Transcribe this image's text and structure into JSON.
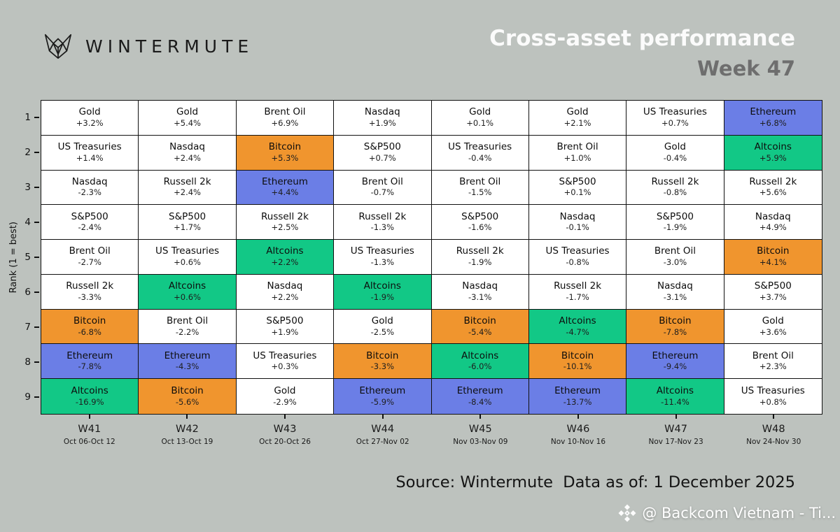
{
  "header": {
    "brand": "WINTERMUTE",
    "title": "Cross-asset performance",
    "subtitle": "Week 47"
  },
  "colors": {
    "background": "#bdc2be",
    "grid_line": "#111111",
    "bitcoin": "#f0952e",
    "ethereum": "#6b7ee6",
    "altcoins": "#12c886",
    "default_cell": "#ffffff",
    "title_text": "#fbfbfb",
    "subtitle_text": "#6e6e6e"
  },
  "chart_data": {
    "type": "heatmap",
    "title": "Cross-asset performance",
    "subtitle": "Week 47",
    "ylabel": "Rank (1 = best)",
    "legend": "none",
    "grid": "on",
    "columns": [
      {
        "week": "W41",
        "dates": "Oct 06-Oct 12"
      },
      {
        "week": "W42",
        "dates": "Oct 13-Oct 19"
      },
      {
        "week": "W43",
        "dates": "Oct 20-Oct 26"
      },
      {
        "week": "W44",
        "dates": "Oct 27-Nov 02"
      },
      {
        "week": "W45",
        "dates": "Nov 03-Nov 09"
      },
      {
        "week": "W46",
        "dates": "Nov 10-Nov 16"
      },
      {
        "week": "W47",
        "dates": "Nov 17-Nov 23"
      },
      {
        "week": "W48",
        "dates": "Nov 24-Nov 30"
      }
    ],
    "rows": [
      {
        "rank": "1",
        "cells": [
          {
            "asset": "Gold",
            "change": "+3.2%"
          },
          {
            "asset": "Gold",
            "change": "+5.4%"
          },
          {
            "asset": "Brent Oil",
            "change": "+6.9%"
          },
          {
            "asset": "Nasdaq",
            "change": "+1.9%"
          },
          {
            "asset": "Gold",
            "change": "+0.1%"
          },
          {
            "asset": "Gold",
            "change": "+2.1%"
          },
          {
            "asset": "US Treasuries",
            "change": "+0.7%"
          },
          {
            "asset": "Ethereum",
            "change": "+6.8%"
          }
        ]
      },
      {
        "rank": "2",
        "cells": [
          {
            "asset": "US Treasuries",
            "change": "+1.4%"
          },
          {
            "asset": "Nasdaq",
            "change": "+2.4%"
          },
          {
            "asset": "Bitcoin",
            "change": "+5.3%"
          },
          {
            "asset": "S&P500",
            "change": "+0.7%"
          },
          {
            "asset": "US Treasuries",
            "change": "-0.4%"
          },
          {
            "asset": "Brent Oil",
            "change": "+1.0%"
          },
          {
            "asset": "Gold",
            "change": "-0.4%"
          },
          {
            "asset": "Altcoins",
            "change": "+5.9%"
          }
        ]
      },
      {
        "rank": "3",
        "cells": [
          {
            "asset": "Nasdaq",
            "change": "-2.3%"
          },
          {
            "asset": "Russell 2k",
            "change": "+2.4%"
          },
          {
            "asset": "Ethereum",
            "change": "+4.4%"
          },
          {
            "asset": "Brent Oil",
            "change": "-0.7%"
          },
          {
            "asset": "Brent Oil",
            "change": "-1.5%"
          },
          {
            "asset": "S&P500",
            "change": "+0.1%"
          },
          {
            "asset": "Russell 2k",
            "change": "-0.8%"
          },
          {
            "asset": "Russell 2k",
            "change": "+5.6%"
          }
        ]
      },
      {
        "rank": "4",
        "cells": [
          {
            "asset": "S&P500",
            "change": "-2.4%"
          },
          {
            "asset": "S&P500",
            "change": "+1.7%"
          },
          {
            "asset": "Russell 2k",
            "change": "+2.5%"
          },
          {
            "asset": "Russell 2k",
            "change": "-1.3%"
          },
          {
            "asset": "S&P500",
            "change": "-1.6%"
          },
          {
            "asset": "Nasdaq",
            "change": "-0.1%"
          },
          {
            "asset": "S&P500",
            "change": "-1.9%"
          },
          {
            "asset": "Nasdaq",
            "change": "+4.9%"
          }
        ]
      },
      {
        "rank": "5",
        "cells": [
          {
            "asset": "Brent Oil",
            "change": "-2.7%"
          },
          {
            "asset": "US Treasuries",
            "change": "+0.6%"
          },
          {
            "asset": "Altcoins",
            "change": "+2.2%"
          },
          {
            "asset": "US Treasuries",
            "change": "-1.3%"
          },
          {
            "asset": "Russell 2k",
            "change": "-1.9%"
          },
          {
            "asset": "US Treasuries",
            "change": "-0.8%"
          },
          {
            "asset": "Brent Oil",
            "change": "-3.0%"
          },
          {
            "asset": "Bitcoin",
            "change": "+4.1%"
          }
        ]
      },
      {
        "rank": "6",
        "cells": [
          {
            "asset": "Russell 2k",
            "change": "-3.3%"
          },
          {
            "asset": "Altcoins",
            "change": "+0.6%"
          },
          {
            "asset": "Nasdaq",
            "change": "+2.2%"
          },
          {
            "asset": "Altcoins",
            "change": "-1.9%"
          },
          {
            "asset": "Nasdaq",
            "change": "-3.1%"
          },
          {
            "asset": "Russell 2k",
            "change": "-1.7%"
          },
          {
            "asset": "Nasdaq",
            "change": "-3.1%"
          },
          {
            "asset": "S&P500",
            "change": "+3.7%"
          }
        ]
      },
      {
        "rank": "7",
        "cells": [
          {
            "asset": "Bitcoin",
            "change": "-6.8%"
          },
          {
            "asset": "Brent Oil",
            "change": "-2.2%"
          },
          {
            "asset": "S&P500",
            "change": "+1.9%"
          },
          {
            "asset": "Gold",
            "change": "-2.5%"
          },
          {
            "asset": "Bitcoin",
            "change": "-5.4%"
          },
          {
            "asset": "Altcoins",
            "change": "-4.7%"
          },
          {
            "asset": "Bitcoin",
            "change": "-7.8%"
          },
          {
            "asset": "Gold",
            "change": "+3.6%"
          }
        ]
      },
      {
        "rank": "8",
        "cells": [
          {
            "asset": "Ethereum",
            "change": "-7.8%"
          },
          {
            "asset": "Ethereum",
            "change": "-4.3%"
          },
          {
            "asset": "US Treasuries",
            "change": "+0.3%"
          },
          {
            "asset": "Bitcoin",
            "change": "-3.3%"
          },
          {
            "asset": "Altcoins",
            "change": "-6.0%"
          },
          {
            "asset": "Bitcoin",
            "change": "-10.1%"
          },
          {
            "asset": "Ethereum",
            "change": "-9.4%"
          },
          {
            "asset": "Brent Oil",
            "change": "+2.3%"
          }
        ]
      },
      {
        "rank": "9",
        "cells": [
          {
            "asset": "Altcoins",
            "change": "-16.9%"
          },
          {
            "asset": "Bitcoin",
            "change": "-5.6%"
          },
          {
            "asset": "Gold",
            "change": "-2.9%"
          },
          {
            "asset": "Ethereum",
            "change": "-5.9%"
          },
          {
            "asset": "Ethereum",
            "change": "-8.4%"
          },
          {
            "asset": "Ethereum",
            "change": "-13.7%"
          },
          {
            "asset": "Altcoins",
            "change": "-11.4%"
          },
          {
            "asset": "US Treasuries",
            "change": "+0.8%"
          }
        ]
      }
    ]
  },
  "footer": {
    "source": "Source: Wintermute  Data as of: 1 December 2025"
  },
  "watermark": {
    "text": "@ Backcom Vietnam - Ti..."
  }
}
